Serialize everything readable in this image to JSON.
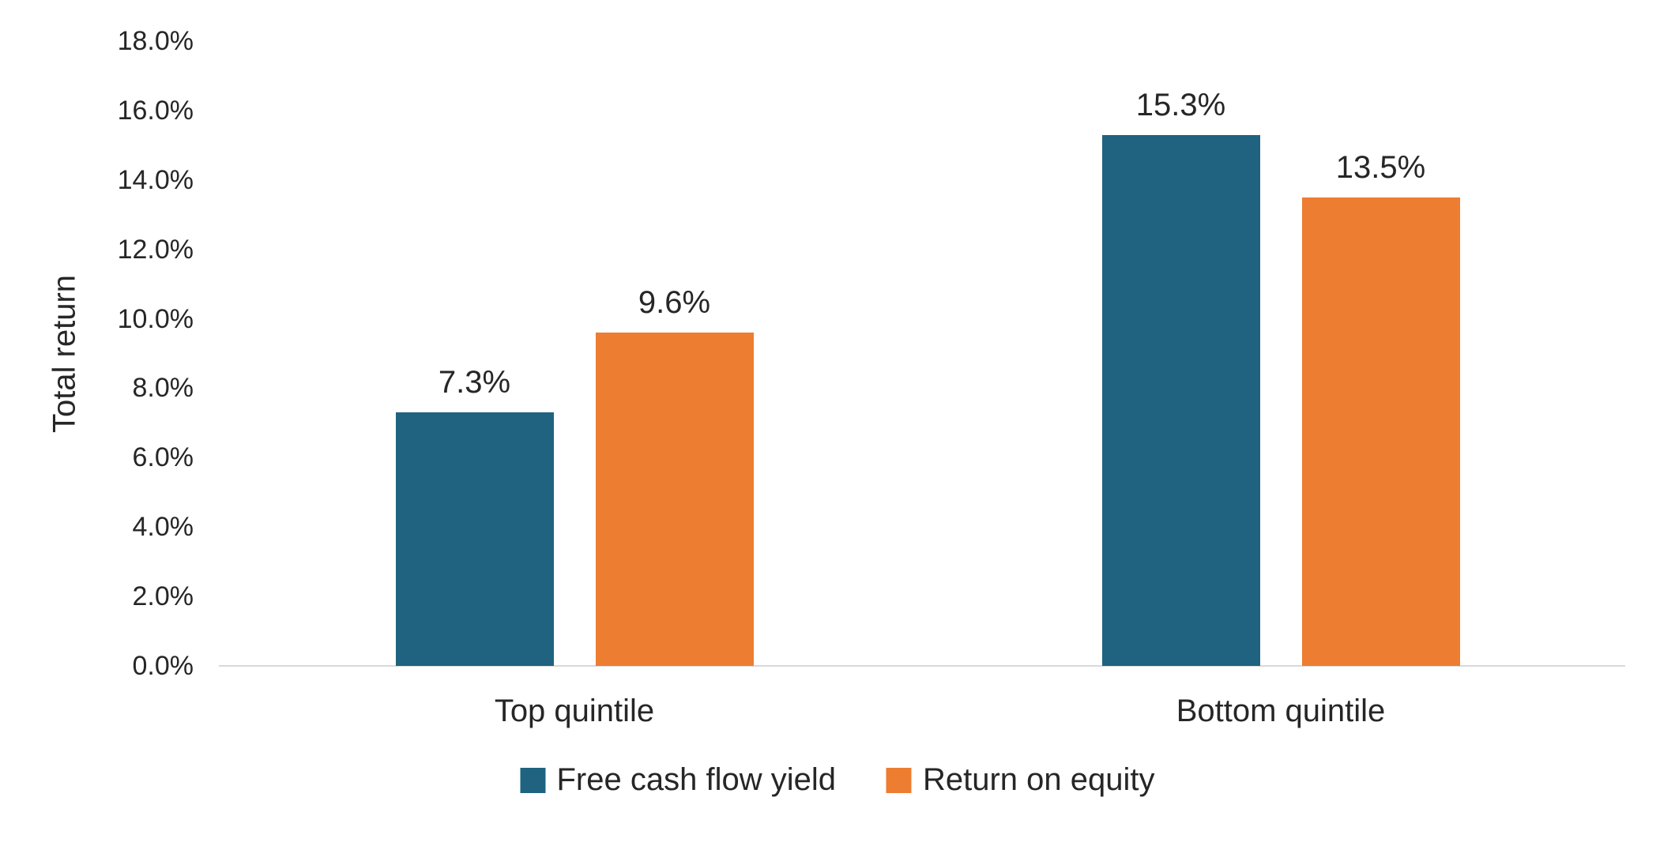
{
  "chart_data": {
    "type": "bar",
    "title": "",
    "ylabel": "Total return",
    "ylim": [
      0,
      18
    ],
    "grid": false,
    "legend_position": "bottom",
    "background": "#FFFFFF",
    "axis_line_color": "#D9D9D9",
    "text_color": "#262626",
    "yticks": [
      {
        "value": 0,
        "label": "0.0%"
      },
      {
        "value": 2,
        "label": "2.0%"
      },
      {
        "value": 4,
        "label": "4.0%"
      },
      {
        "value": 6,
        "label": "6.0%"
      },
      {
        "value": 8,
        "label": "8.0%"
      },
      {
        "value": 10,
        "label": "10.0%"
      },
      {
        "value": 12,
        "label": "12.0%"
      },
      {
        "value": 14,
        "label": "14.0%"
      },
      {
        "value": 16,
        "label": "16.0%"
      },
      {
        "value": 18,
        "label": "18.0%"
      }
    ],
    "categories": [
      "Top quintile",
      "Bottom quintile"
    ],
    "series": [
      {
        "name": "Free cash flow yield",
        "color": "#1F6380",
        "values": [
          7.3,
          15.3
        ],
        "data_labels": [
          "7.3%",
          "15.3%"
        ]
      },
      {
        "name": "Return on equity",
        "color": "#ED7D31",
        "values": [
          9.6,
          13.5
        ],
        "data_labels": [
          "9.6%",
          "13.5%"
        ]
      }
    ]
  }
}
